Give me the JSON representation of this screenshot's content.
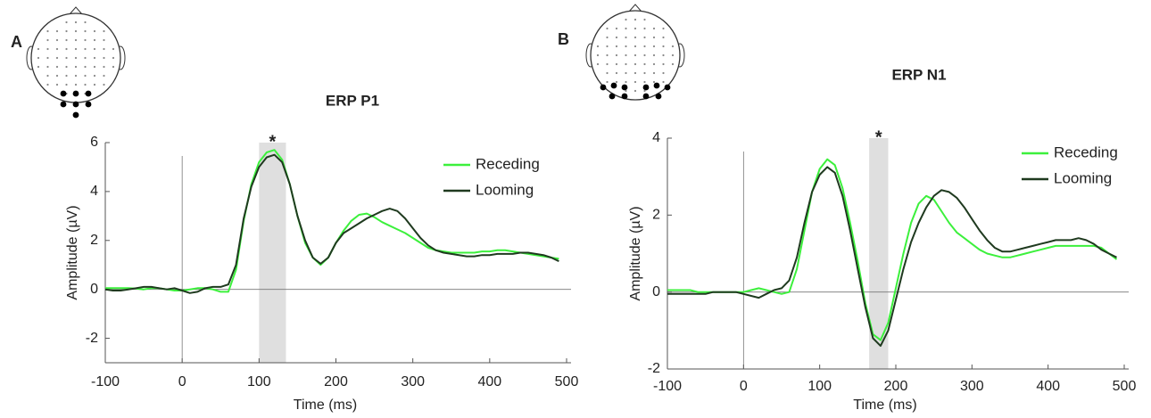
{
  "chart_data": [
    {
      "type": "line",
      "panel": "A",
      "title": "ERP P1",
      "xlabel": "Time (ms)",
      "ylabel": "Amplitude (µV)",
      "x": [
        -100,
        -90,
        -80,
        -70,
        -60,
        -50,
        -40,
        -30,
        -20,
        -10,
        0,
        10,
        20,
        30,
        40,
        50,
        60,
        70,
        80,
        90,
        100,
        110,
        120,
        130,
        140,
        150,
        160,
        170,
        180,
        190,
        200,
        210,
        220,
        230,
        240,
        250,
        260,
        270,
        280,
        290,
        300,
        310,
        320,
        330,
        340,
        350,
        360,
        370,
        380,
        390,
        400,
        410,
        420,
        430,
        440,
        450,
        460,
        470,
        480,
        490
      ],
      "series": [
        {
          "name": "Receding",
          "color": "#3cf03c",
          "values": [
            0.05,
            0.05,
            0.05,
            0.05,
            0.03,
            0.0,
            0.05,
            0.05,
            0.0,
            -0.05,
            -0.05,
            0.0,
            0.05,
            0.05,
            0.0,
            -0.1,
            -0.1,
            0.8,
            2.8,
            4.3,
            5.2,
            5.6,
            5.7,
            5.3,
            4.3,
            3.0,
            1.9,
            1.3,
            1.0,
            1.3,
            1.9,
            2.4,
            2.8,
            3.05,
            3.1,
            2.95,
            2.75,
            2.6,
            2.45,
            2.3,
            2.1,
            1.9,
            1.7,
            1.6,
            1.55,
            1.5,
            1.5,
            1.5,
            1.5,
            1.55,
            1.55,
            1.6,
            1.6,
            1.55,
            1.5,
            1.45,
            1.4,
            1.35,
            1.3,
            1.25
          ]
        },
        {
          "name": "Looming",
          "color": "#1f3a1f",
          "values": [
            0.0,
            -0.05,
            -0.05,
            0.0,
            0.05,
            0.1,
            0.1,
            0.05,
            0.0,
            0.05,
            -0.05,
            -0.15,
            -0.1,
            0.05,
            0.1,
            0.1,
            0.2,
            1.0,
            2.9,
            4.2,
            5.0,
            5.4,
            5.5,
            5.2,
            4.3,
            3.0,
            2.0,
            1.3,
            1.05,
            1.3,
            1.9,
            2.3,
            2.5,
            2.7,
            2.9,
            3.05,
            3.2,
            3.3,
            3.2,
            2.9,
            2.5,
            2.1,
            1.8,
            1.6,
            1.5,
            1.45,
            1.4,
            1.35,
            1.35,
            1.4,
            1.4,
            1.45,
            1.45,
            1.45,
            1.5,
            1.5,
            1.45,
            1.4,
            1.3,
            1.15
          ]
        }
      ],
      "xlim": [
        -100,
        500
      ],
      "xticks": [
        -100,
        0,
        100,
        200,
        300,
        400,
        500
      ],
      "ylim": [
        -3,
        6
      ],
      "yticks": [
        -2,
        0,
        2,
        4,
        6
      ],
      "shade": [
        100,
        135
      ],
      "annotation": "*",
      "legend": "upper right"
    },
    {
      "type": "line",
      "panel": "B",
      "title": "ERP N1",
      "xlabel": "Time (ms)",
      "ylabel": "Amplitude (µV)",
      "x": [
        -100,
        -90,
        -80,
        -70,
        -60,
        -50,
        -40,
        -30,
        -20,
        -10,
        0,
        10,
        20,
        30,
        40,
        50,
        60,
        70,
        80,
        90,
        100,
        110,
        120,
        130,
        140,
        150,
        160,
        170,
        180,
        190,
        200,
        210,
        220,
        230,
        240,
        250,
        260,
        270,
        280,
        290,
        300,
        310,
        320,
        330,
        340,
        350,
        360,
        370,
        380,
        390,
        400,
        410,
        420,
        430,
        440,
        450,
        460,
        470,
        480,
        490
      ],
      "series": [
        {
          "name": "Receding",
          "color": "#3cf03c",
          "values": [
            0.05,
            0.05,
            0.05,
            0.05,
            0.0,
            0.0,
            0.0,
            0.0,
            0.0,
            0.0,
            0.0,
            0.05,
            0.1,
            0.05,
            0.0,
            -0.05,
            0.0,
            0.6,
            1.6,
            2.6,
            3.2,
            3.45,
            3.3,
            2.7,
            1.8,
            0.8,
            -0.3,
            -1.1,
            -1.25,
            -0.8,
            0.1,
            1.0,
            1.8,
            2.3,
            2.5,
            2.4,
            2.1,
            1.8,
            1.55,
            1.4,
            1.25,
            1.1,
            1.0,
            0.95,
            0.9,
            0.9,
            0.95,
            1.0,
            1.05,
            1.1,
            1.15,
            1.2,
            1.2,
            1.2,
            1.2,
            1.2,
            1.2,
            1.15,
            1.0,
            0.85
          ]
        },
        {
          "name": "Looming",
          "color": "#1f3a1f",
          "values": [
            -0.05,
            -0.05,
            -0.05,
            -0.05,
            -0.05,
            -0.05,
            0.0,
            0.0,
            0.0,
            0.0,
            -0.05,
            -0.1,
            -0.15,
            -0.05,
            0.05,
            0.1,
            0.3,
            0.9,
            1.8,
            2.6,
            3.05,
            3.25,
            3.1,
            2.5,
            1.6,
            0.6,
            -0.4,
            -1.2,
            -1.4,
            -1.0,
            -0.2,
            0.6,
            1.3,
            1.8,
            2.2,
            2.5,
            2.65,
            2.6,
            2.45,
            2.2,
            1.9,
            1.6,
            1.35,
            1.15,
            1.05,
            1.05,
            1.1,
            1.15,
            1.2,
            1.25,
            1.3,
            1.35,
            1.35,
            1.35,
            1.4,
            1.35,
            1.25,
            1.1,
            1.0,
            0.9
          ]
        }
      ],
      "xlim": [
        -100,
        500
      ],
      "xticks": [
        -100,
        0,
        100,
        200,
        300,
        400,
        500
      ],
      "ylim": [
        -2,
        4
      ],
      "yticks": [
        -2,
        0,
        2,
        4
      ],
      "shade": [
        165,
        190
      ],
      "annotation": "*",
      "legend": "upper right"
    }
  ]
}
